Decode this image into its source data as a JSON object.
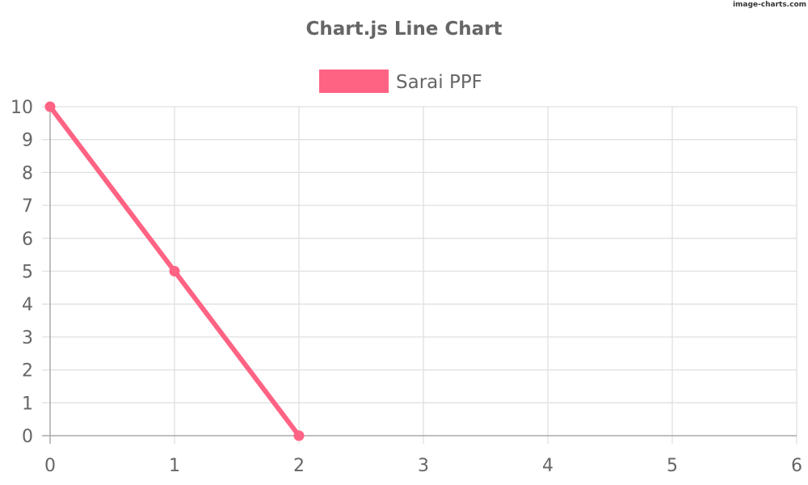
{
  "watermark": "image-charts.com",
  "chart_data": {
    "type": "line",
    "title": "Chart.js Line Chart",
    "xlabel": "",
    "ylabel": "",
    "x": [
      0,
      1,
      2
    ],
    "series": [
      {
        "name": "Sarai PPF",
        "values": [
          10,
          5,
          0
        ],
        "color": "#ff6384"
      }
    ],
    "xlim": [
      0,
      6
    ],
    "ylim": [
      0,
      10
    ],
    "xticks": [
      0,
      1,
      2,
      3,
      4,
      5,
      6
    ],
    "yticks": [
      0,
      1,
      2,
      3,
      4,
      5,
      6,
      7,
      8,
      9,
      10
    ],
    "grid": true,
    "legend_position": "top",
    "grid_color": "#e0e0e0",
    "axis_color": "#aaaaaa",
    "text_color": "#666666"
  }
}
